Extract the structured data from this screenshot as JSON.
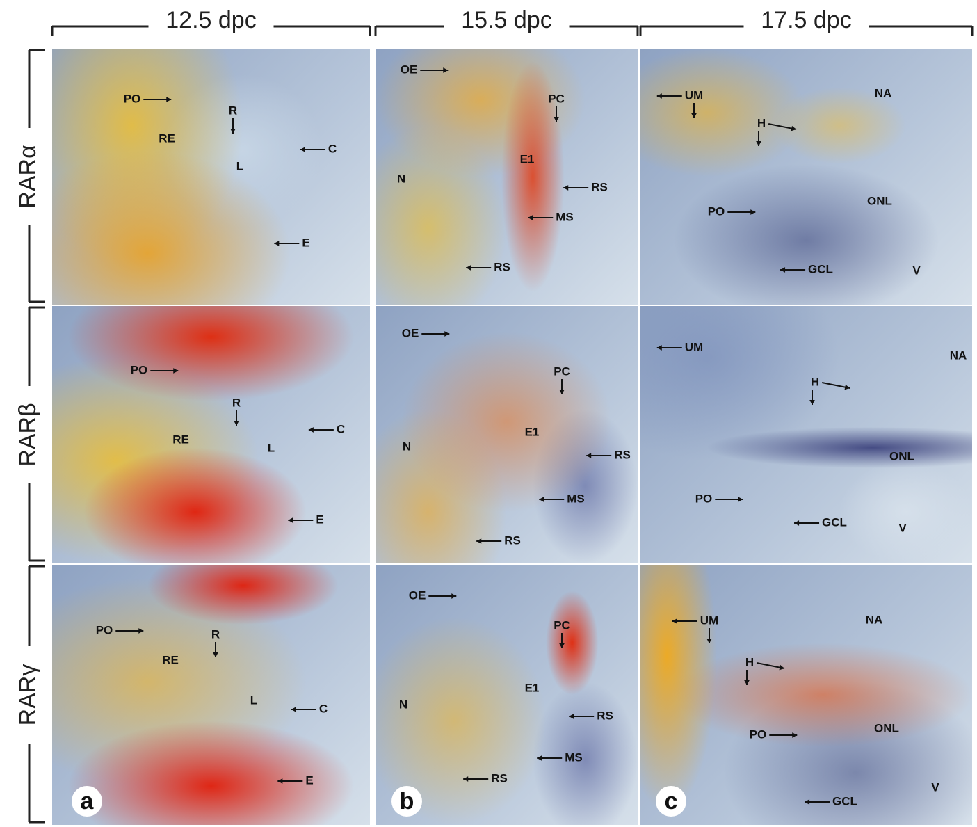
{
  "columns": [
    {
      "title": "12.5 dpc",
      "letter": "a"
    },
    {
      "title": "15.5 dpc",
      "letter": "b"
    },
    {
      "title": "17.5 dpc",
      "letter": "c"
    }
  ],
  "rows": [
    {
      "label": "RARα",
      "panels": [
        {
          "labels": [
            "PO",
            "R",
            "RE",
            "C",
            "L",
            "E"
          ]
        },
        {
          "labels": [
            "OE",
            "PC",
            "E1",
            "N",
            "RS",
            "MS",
            "RS"
          ]
        },
        {
          "labels": [
            "UM",
            "NA",
            "H",
            "PO",
            "ONL",
            "GCL",
            "V"
          ]
        }
      ]
    },
    {
      "label": "RARβ",
      "panels": [
        {
          "labels": [
            "PO",
            "R",
            "RE",
            "C",
            "L",
            "E"
          ]
        },
        {
          "labels": [
            "OE",
            "PC",
            "E1",
            "N",
            "RS",
            "MS",
            "RS"
          ]
        },
        {
          "labels": [
            "UM",
            "NA",
            "H",
            "ONL",
            "PO",
            "GCL",
            "V"
          ]
        }
      ]
    },
    {
      "label": "RARγ",
      "panels": [
        {
          "labels": [
            "PO",
            "R",
            "RE",
            "L",
            "C",
            "E"
          ]
        },
        {
          "labels": [
            "OE",
            "PC",
            "E1",
            "N",
            "RS",
            "MS",
            "RS"
          ]
        },
        {
          "labels": [
            "UM",
            "NA",
            "H",
            "ONL",
            "PO",
            "GCL",
            "V"
          ]
        }
      ]
    }
  ]
}
